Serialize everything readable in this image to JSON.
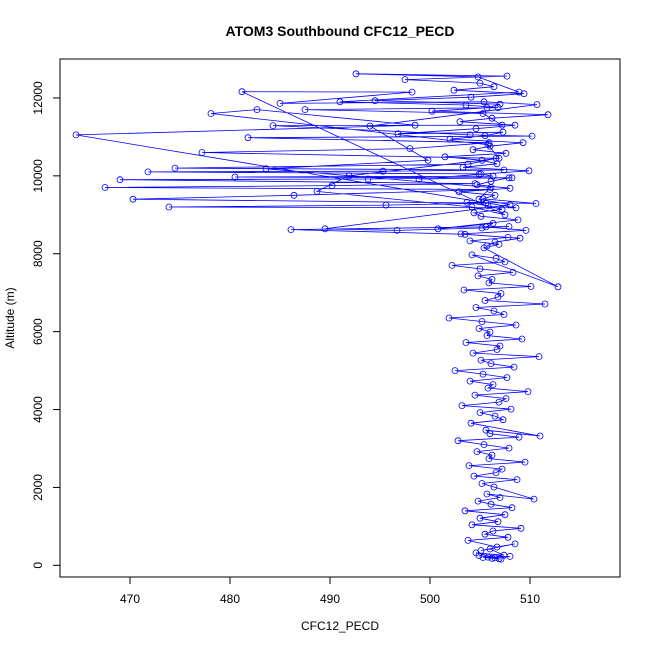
{
  "chart_data": {
    "type": "line",
    "title": "ATOM3 Southbound CFC12_PECD",
    "xlabel": "CFC12_PECD",
    "ylabel": "Altitude (m)",
    "xlim": [
      463,
      519
    ],
    "ylim": [
      -300,
      13000
    ],
    "x_ticks": [
      470,
      480,
      490,
      500,
      510
    ],
    "y_ticks": [
      0,
      2000,
      4000,
      6000,
      8000,
      10000,
      12000
    ],
    "grid": false,
    "line_color": "#0000ff",
    "marker": "open-circle",
    "series": [
      {
        "x": [
          506.2,
          505.8,
          507.1,
          504.9,
          506.5,
          508.0,
          505.3,
          506.9,
          504.6,
          507.4,
          506.0,
          505.1,
          508.5,
          506.7,
          503.8,
          507.8,
          505.5,
          506.3,
          509.1,
          504.2,
          506.8,
          505.0,
          507.5,
          503.5,
          508.2,
          506.1,
          504.8,
          507.0,
          505.7,
          510.4,
          506.4,
          505.2,
          508.7,
          504.4,
          506.6,
          507.2,
          503.9,
          509.5,
          505.9,
          506.2,
          504.7,
          507.9,
          505.4,
          502.8,
          508.9,
          506.0,
          505.6,
          511.0,
          504.1,
          507.3,
          506.5,
          505.0,
          508.1,
          503.2,
          506.9,
          507.6,
          504.5,
          509.8,
          505.8,
          506.3,
          504.0,
          507.7,
          505.3,
          502.5,
          508.4,
          506.1,
          505.1,
          510.9,
          504.3,
          506.7,
          507.0,
          503.6,
          509.2,
          505.7,
          506.0,
          504.9,
          508.6,
          505.2,
          501.9,
          507.4,
          506.4,
          504.6,
          511.5,
          505.5,
          506.8,
          507.1,
          503.4,
          510.1,
          505.9,
          506.2,
          504.8,
          508.3,
          505.0,
          502.2,
          507.5,
          506.6,
          504.2,
          512.8,
          505.4,
          506.9,
          504.0,
          507.8,
          503.1,
          509.6,
          505.6,
          506.3,
          500.8,
          508.8,
          505.1,
          504.4,
          507.2,
          505.8,
          503.7,
          510.6,
          505.3,
          506.5,
          502.9,
          508.0,
          504.7,
          506.1,
          507.9,
          498.9,
          504.9,
          509.9,
          503.3,
          506.7,
          505.2,
          501.5,
          507.6,
          504.3,
          506.0,
          509.3,
          502.0,
          505.5,
          507.3,
          496.8,
          504.6,
          508.5,
          503.0,
          506.2,
          511.8,
          500.2,
          505.7,
          507.0,
          494.5,
          504.1,
          509.4,
          502.4,
          506.4,
          505.0,
          497.5,
          507.7,
          492.6,
          504.8,
          508.9,
          491.0,
          503.6,
          506.8,
          487.5,
          505.3,
          507.2,
          484.3,
          504.0,
          510.2,
          481.8,
          505.9,
          498.0,
          477.2,
          506.6,
          503.8,
          474.5,
          507.4,
          495.3,
          471.8,
          505.1,
          506.3,
          480.5,
          508.2,
          493.8,
          469.0,
          504.5,
          490.2,
          467.5,
          506.0,
          486.4,
          470.3,
          505.6,
          495.6,
          473.9,
          508.6,
          464.6,
          498.5,
          482.7,
          478.1,
          505.8,
          506.9,
          491.9,
          488.7,
          504.2,
          507.5,
          481.2,
          498.2,
          485.0,
          505.4,
          510.7,
          494.0,
          499.8,
          483.6,
          506.1,
          504.9,
          508.0,
          489.5,
          496.7,
          505.2,
          507.9,
          486.1,
          503.5,
          509.0,
          506.5,
          505.7
        ],
        "y": [
          180,
          210,
          160,
          250,
          190,
          230,
          200,
          170,
          320,
          260,
          420,
          380,
          550,
          470,
          640,
          720,
          800,
          880,
          950,
          1040,
          1120,
          1210,
          1300,
          1400,
          1480,
          1570,
          1650,
          1740,
          1830,
          1700,
          2010,
          2100,
          2200,
          2290,
          2380,
          2470,
          2560,
          2650,
          2740,
          2830,
          2920,
          3010,
          3100,
          3200,
          3290,
          3380,
          3470,
          3320,
          3650,
          3740,
          3830,
          3920,
          4010,
          4100,
          4190,
          4280,
          4370,
          4460,
          4550,
          4640,
          4730,
          4820,
          4910,
          5000,
          5090,
          5180,
          5270,
          5360,
          5450,
          5540,
          5630,
          5720,
          5810,
          5900,
          5990,
          6080,
          6170,
          6260,
          6350,
          6440,
          6530,
          6620,
          6710,
          6800,
          6890,
          6980,
          7070,
          7160,
          7250,
          7340,
          7430,
          7520,
          7610,
          7700,
          7790,
          7880,
          7970,
          7150,
          8150,
          8240,
          8330,
          8420,
          8510,
          8600,
          8690,
          8780,
          8640,
          8870,
          8960,
          9050,
          9140,
          9230,
          9320,
          9290,
          9410,
          9500,
          9590,
          9680,
          9770,
          9860,
          9950,
          9920,
          10040,
          10130,
          10220,
          10310,
          10400,
          10490,
          10580,
          10670,
          10760,
          10850,
          10940,
          11030,
          11120,
          11080,
          11210,
          11300,
          11390,
          11480,
          11570,
          11660,
          11750,
          11840,
          11930,
          12020,
          12110,
          12200,
          12290,
          12380,
          12470,
          12560,
          12620,
          12540,
          12150,
          11900,
          11820,
          11750,
          11700,
          11600,
          11300,
          11290,
          11050,
          11020,
          10980,
          10850,
          10700,
          10600,
          10450,
          10300,
          10200,
          10150,
          10120,
          10100,
          10050,
          9990,
          9970,
          9950,
          9920,
          9900,
          9800,
          9750,
          9700,
          9650,
          9500,
          9400,
          9300,
          9250,
          9200,
          9180,
          11050,
          11300,
          11700,
          11600,
          10800,
          10450,
          10000,
          9600,
          9200,
          9000,
          12160,
          12150,
          11860,
          11900,
          11830,
          11280,
          10400,
          10180,
          9700,
          9400,
          9260,
          8640,
          8600,
          8660,
          8700,
          8620,
          8500,
          8400,
          8300,
          8200
        ]
      }
    ]
  }
}
